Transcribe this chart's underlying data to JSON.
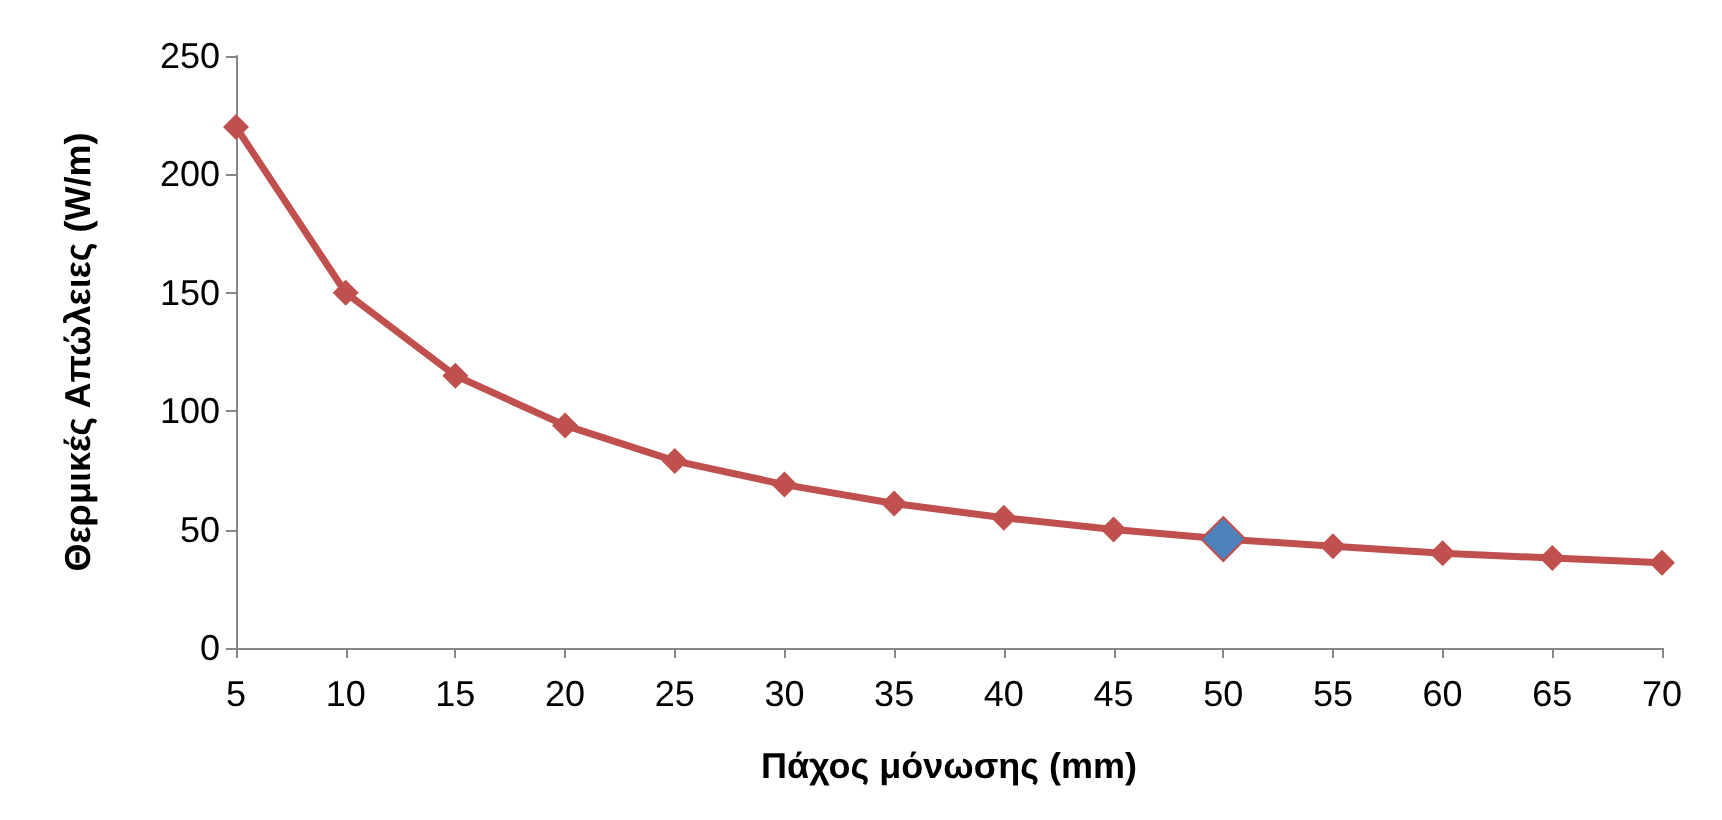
{
  "chart_data": {
    "type": "line",
    "xlabel": "Πάχος μόνωσης (mm)",
    "ylabel": "Θερμικές Απώλειες (W/m)",
    "categories": [
      "5",
      "10",
      "15",
      "20",
      "25",
      "30",
      "35",
      "40",
      "45",
      "50",
      "55",
      "60",
      "65",
      "70"
    ],
    "series": [
      {
        "color": "#c0504d",
        "values": [
          220,
          150,
          115,
          94,
          79,
          69,
          61,
          55,
          50,
          46,
          43,
          40,
          38,
          36
        ],
        "colors": [
          "#c0504d",
          "#c0504d",
          "#c0504d",
          "#c0504d",
          "#c0504d",
          "#c0504d",
          "#c0504d",
          "#c0504d",
          "#c0504d",
          "#4f81bd",
          "#c0504d",
          "#c0504d",
          "#c0504d",
          "#c0504d"
        ]
      }
    ],
    "ylim": [
      0,
      250
    ],
    "yticks": [
      0,
      50,
      100,
      150,
      200,
      250
    ],
    "grid": false,
    "marker": "diamond",
    "line_style": "solid"
  }
}
